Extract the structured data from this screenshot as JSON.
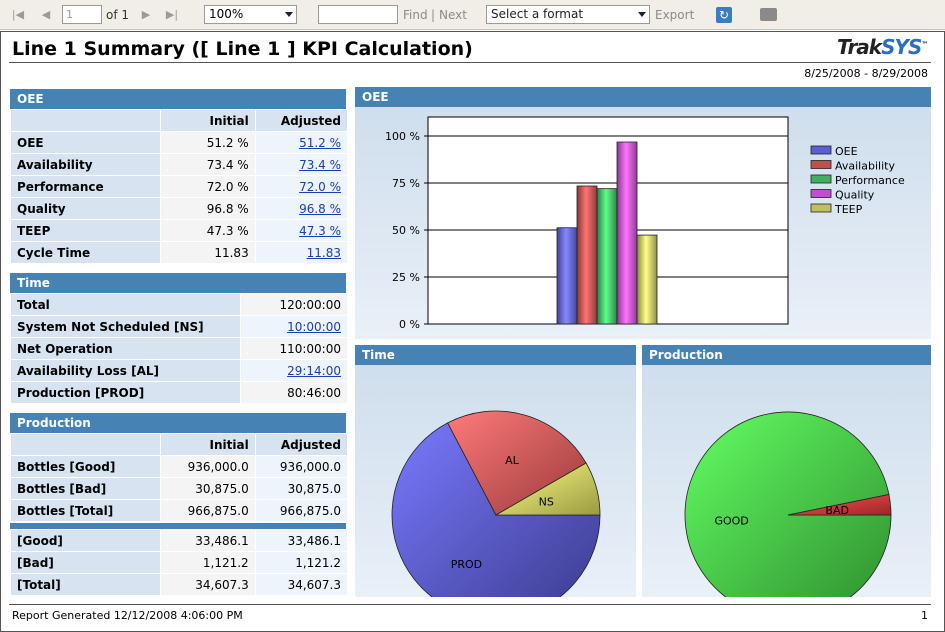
{
  "toolbar": {
    "page_value": "1",
    "of_label": "of 1",
    "zoom": "100%",
    "find_label": "Find",
    "separator": "|",
    "next_label": "Next",
    "format_select": "Select a format",
    "export_label": "Export"
  },
  "report": {
    "title": "Line 1 Summary ([ Line 1 ] KPI Calculation)",
    "logo_main": "Trak",
    "logo_accent": "SYS",
    "logo_tm": "™",
    "date_range": "8/25/2008 - 8/29/2008",
    "footer": "Report Generated 12/12/2008 4:06:00 PM",
    "page_number": "1"
  },
  "oee_table": {
    "header": "OEE",
    "col_initial": "Initial",
    "col_adjusted": "Adjusted",
    "rows": [
      {
        "label": "OEE",
        "initial": "51.2 %",
        "adjusted": "51.2 %"
      },
      {
        "label": "Availability",
        "initial": "73.4 %",
        "adjusted": "73.4 %"
      },
      {
        "label": "Performance",
        "initial": "72.0 %",
        "adjusted": "72.0 %"
      },
      {
        "label": "Quality",
        "initial": "96.8 %",
        "adjusted": "96.8 %"
      },
      {
        "label": "TEEP",
        "initial": "47.3 %",
        "adjusted": "47.3 %"
      },
      {
        "label": "Cycle Time",
        "initial": "11.83",
        "adjusted": "11.83"
      }
    ]
  },
  "time_table": {
    "header": "Time",
    "rows": [
      {
        "label": "Total",
        "value": "120:00:00"
      },
      {
        "label": "System Not Scheduled [NS]",
        "value": "10:00:00"
      },
      {
        "label": "Net Operation",
        "value": "110:00:00"
      },
      {
        "label": "Availability Loss [AL]",
        "value": "29:14:00"
      },
      {
        "label": "Production [PROD]",
        "value": "80:46:00"
      }
    ]
  },
  "production_table": {
    "header": "Production",
    "col_initial": "Initial",
    "col_adjusted": "Adjusted",
    "rows": [
      {
        "label": "Bottles [Good]",
        "initial": "936,000.0",
        "adjusted": "936,000.0"
      },
      {
        "label": "Bottles [Bad]",
        "initial": "30,875.0",
        "adjusted": "30,875.0"
      },
      {
        "label": "Bottles [Total]",
        "initial": "966,875.0",
        "adjusted": "966,875.0"
      }
    ],
    "rows2": [
      {
        "label": "[Good]",
        "initial": "33,486.1",
        "adjusted": "33,486.1"
      },
      {
        "label": "[Bad]",
        "initial": "1,121.2",
        "adjusted": "1,121.2"
      },
      {
        "label": "[Total]",
        "initial": "34,607.3",
        "adjusted": "34,607.3"
      }
    ]
  },
  "panels": {
    "oee_chart": "OEE",
    "time_chart": "Time",
    "production_chart": "Production"
  },
  "chart_data": [
    {
      "type": "bar",
      "title": "OEE",
      "categories": [
        "OEE",
        "Availability",
        "Performance",
        "Quality",
        "TEEP"
      ],
      "values": [
        51.2,
        73.4,
        72.0,
        96.8,
        47.3
      ],
      "colors": [
        "#5b5fd0",
        "#c05050",
        "#40b060",
        "#c050c8",
        "#c0c060"
      ],
      "ylim": [
        0,
        100
      ],
      "yticks": [
        "0 %",
        "25 %",
        "50 %",
        "75 %",
        "100 %"
      ],
      "legend": "right",
      "grid": true
    },
    {
      "type": "pie",
      "title": "Time",
      "labels": [
        "PROD",
        "AL",
        "NS"
      ],
      "values": [
        80.77,
        29.23,
        10.0
      ],
      "colors": [
        "#4848b0",
        "#c04848",
        "#c0c050"
      ]
    },
    {
      "type": "pie",
      "title": "Production",
      "labels": [
        "GOOD",
        "BAD"
      ],
      "values": [
        936000,
        30875
      ],
      "colors": [
        "#3ab03a",
        "#c03030"
      ]
    }
  ]
}
